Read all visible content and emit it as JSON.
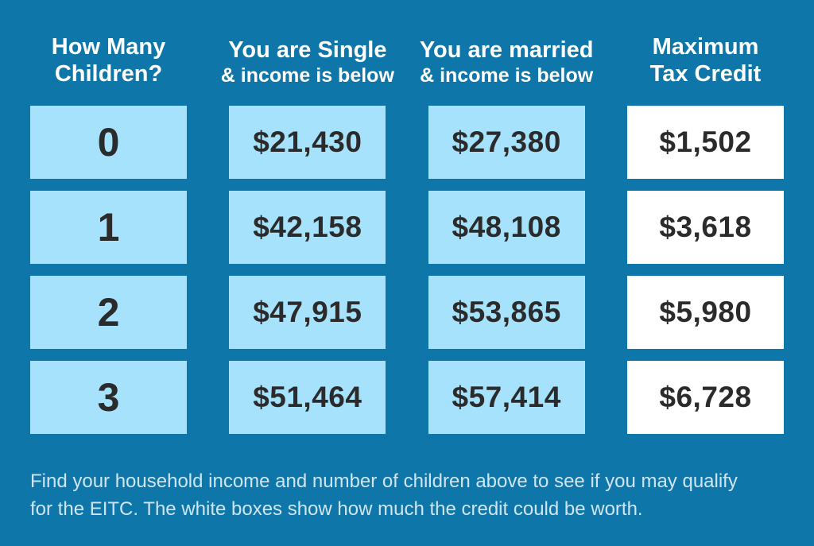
{
  "chart_data": {
    "type": "table",
    "title": "EITC eligibility by number of children",
    "columns": [
      "How Many Children?",
      "You are Single & income is below",
      "You are married & income is below",
      "Maximum Tax Credit"
    ],
    "headers": [
      {
        "line1": "How Many",
        "line2": "Children?"
      },
      {
        "line1": "You are Single",
        "line2": "& income is below"
      },
      {
        "line1": "You are married",
        "line2": "& income is below"
      },
      {
        "line1": "Maximum",
        "line2": "Tax Credit"
      }
    ],
    "rows": [
      [
        "0",
        "$21,430",
        "$27,380",
        "$1,502"
      ],
      [
        "1",
        "$42,158",
        "$48,108",
        "$3,618"
      ],
      [
        "2",
        "$47,915",
        "$53,865",
        "$5,980"
      ],
      [
        "3",
        "$51,464",
        "$57,414",
        "$6,728"
      ]
    ],
    "footnote": "Find your household income and number of children above to see if you may qualify for the EITC. The white boxes show how much the credit could be worth.",
    "footnote_lines": [
      "Find your household income and number of children above to see if you may qualify",
      "for the EITC. The white boxes show how much the credit could be worth."
    ],
    "legend_position": "none",
    "grid": "off"
  },
  "colors": {
    "background": "#0e76a8",
    "box_light_blue": "#a6e2fc",
    "box_white": "#ffffff",
    "value_text": "#2b2b2b",
    "header_text": "#ffffff",
    "footnote_text": "#cfe6f2"
  }
}
